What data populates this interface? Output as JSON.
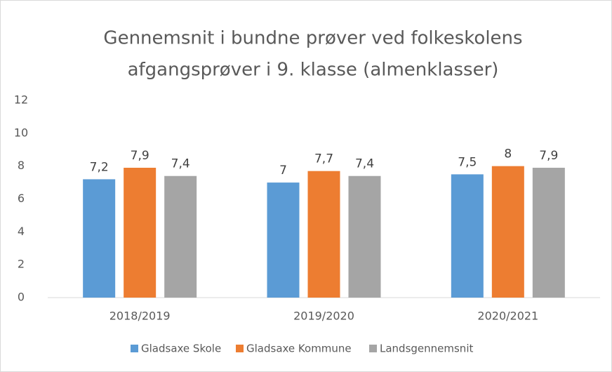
{
  "chart_data": {
    "type": "bar",
    "title": [
      "Gennemsnit i bundne prøver ved folkeskolens",
      "afgangsprøver i 9. klasse (almenklasser)"
    ],
    "categories": [
      "2018/2019",
      "2019/2020",
      "2020/2021"
    ],
    "series": [
      {
        "name": "Gladsaxe Skole",
        "color": "#5b9bd5",
        "values": [
          7.2,
          7,
          7.5
        ],
        "value_labels": [
          "7,2",
          "7",
          "7,5"
        ]
      },
      {
        "name": "Gladsaxe Kommune",
        "color": "#ed7d31",
        "values": [
          7.9,
          7.7,
          8
        ],
        "value_labels": [
          "7,9",
          "7,7",
          "8"
        ]
      },
      {
        "name": "Landsgennemsnit",
        "color": "#a5a5a5",
        "values": [
          7.4,
          7.4,
          7.9
        ],
        "value_labels": [
          "7,4",
          "7,4",
          "7,9"
        ]
      }
    ],
    "ylim": [
      0,
      12
    ],
    "yticks": [
      0,
      2,
      4,
      6,
      8,
      10,
      12
    ],
    "grid": false,
    "legend": "bottom"
  }
}
